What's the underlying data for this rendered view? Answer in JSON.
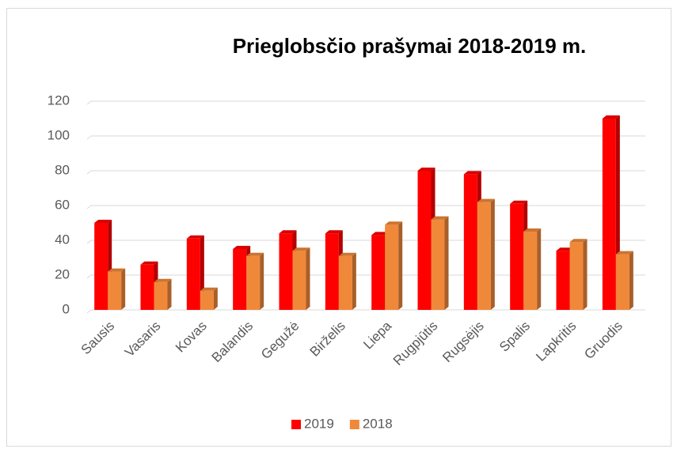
{
  "chart_data": {
    "type": "bar3d",
    "title": "Prieglobsčio prašymai 2018-2019 m.",
    "categories": [
      "Sausis",
      "Vasaris",
      "Kovas",
      "Balandis",
      "Gegužė",
      "Birželis",
      "Liepa",
      "Rugpjūtis",
      "Rugsėjis",
      "Spalis",
      "Lapkritis",
      "Gruodis"
    ],
    "series": [
      {
        "name": "2019",
        "color": "#ff0000",
        "values": [
          50,
          26,
          41,
          35,
          44,
          44,
          43,
          80,
          78,
          61,
          34,
          110
        ]
      },
      {
        "name": "2018",
        "color": "#f0883a",
        "values": [
          22,
          16,
          11,
          31,
          34,
          31,
          49,
          52,
          62,
          45,
          39,
          32
        ]
      }
    ],
    "ylim": [
      0,
      120
    ],
    "yticks": [
      0,
      20,
      40,
      60,
      80,
      100,
      120
    ],
    "grid": true,
    "legend": "bottom"
  }
}
